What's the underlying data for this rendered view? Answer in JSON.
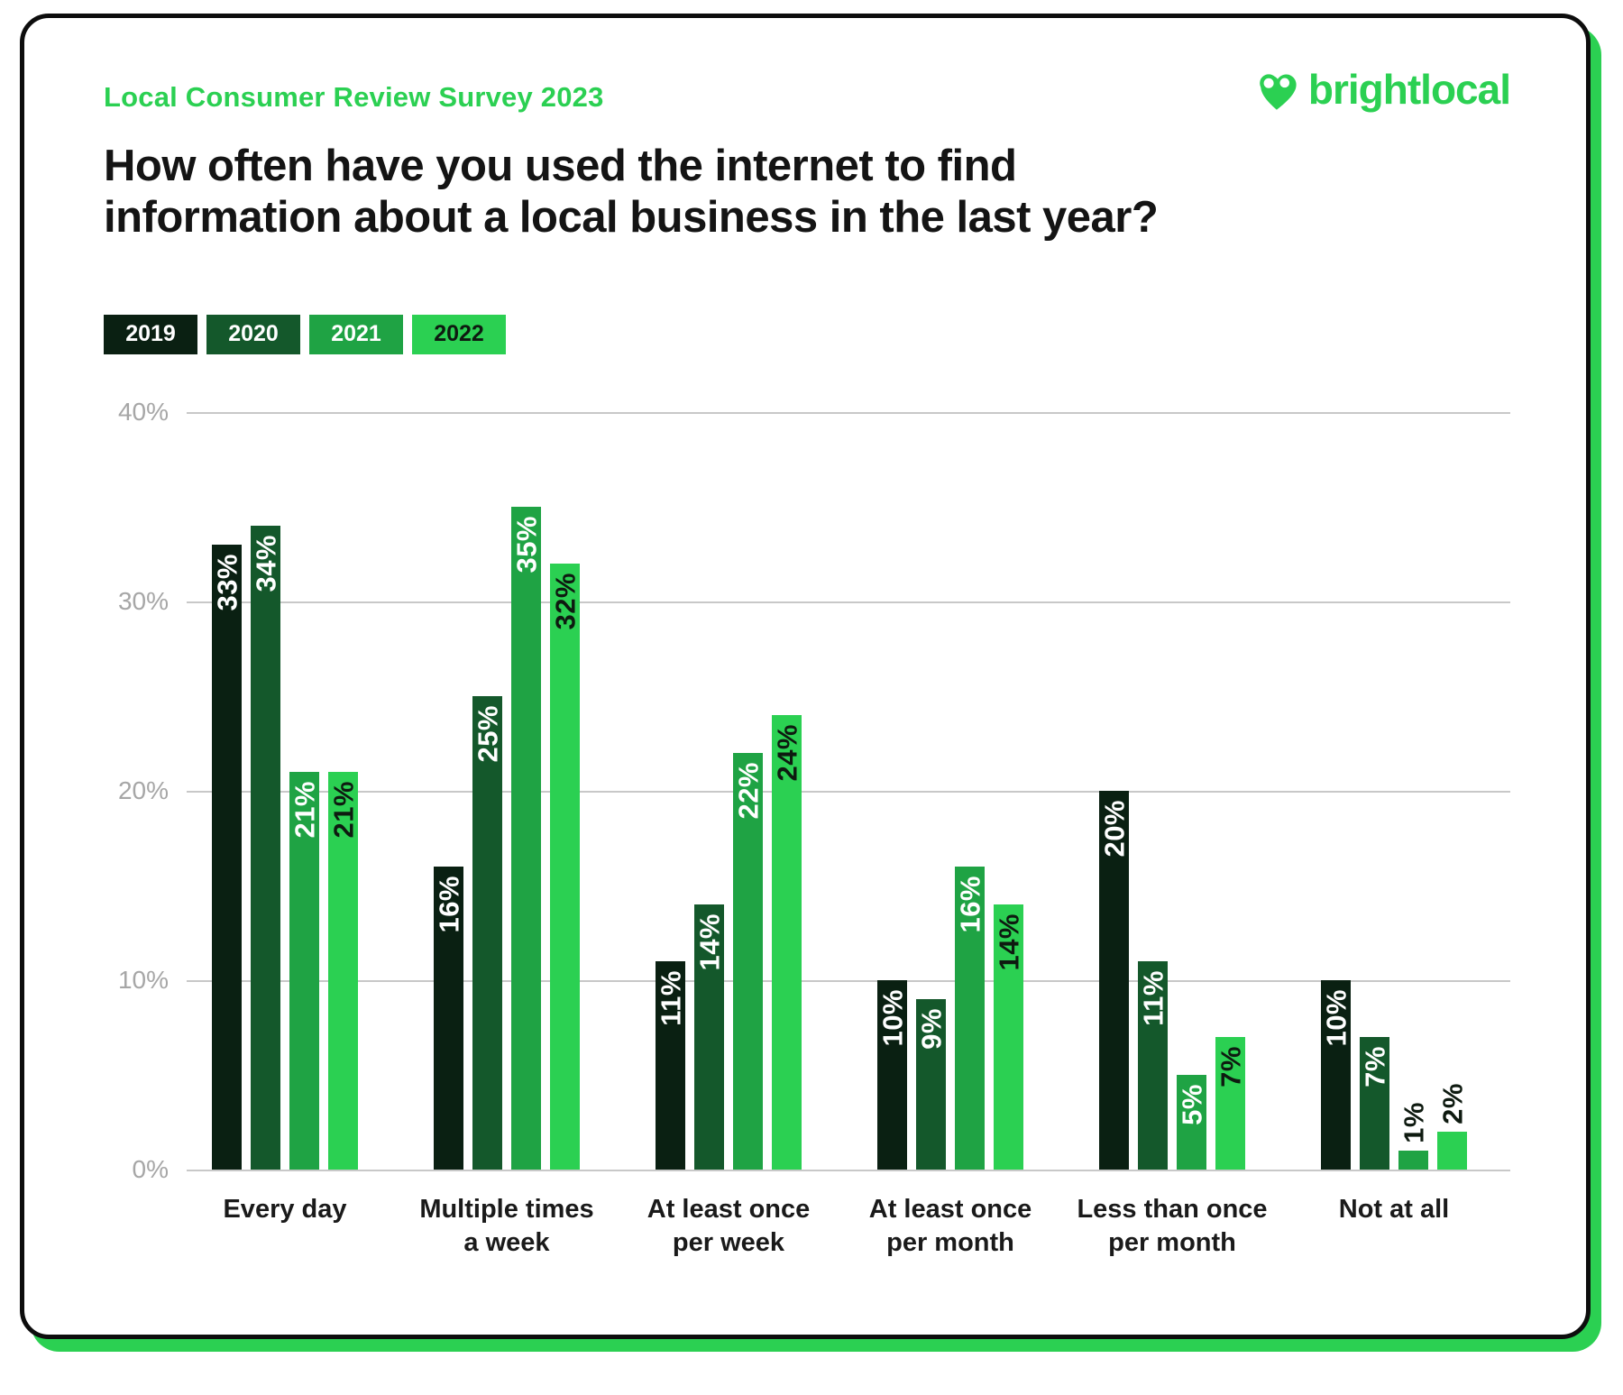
{
  "header": {
    "survey_label": "Local Consumer Review Survey 2023",
    "logo_text": "brightlocal",
    "question_lines": [
      "How often have you used the internet to find",
      "information about a local business in the last year?"
    ]
  },
  "colors": {
    "brand_green": "#2bd052",
    "card_border": "#0d0d0d",
    "gridline": "#c8c8c8",
    "axis_tick_text": "#a6a6a6",
    "heading_text": "#141414"
  },
  "legend": [
    {
      "label": "2019",
      "color": "#0a2012",
      "text_color": "#ffffff"
    },
    {
      "label": "2020",
      "color": "#14582b",
      "text_color": "#ffffff"
    },
    {
      "label": "2021",
      "color": "#1fa344",
      "text_color": "#ffffff"
    },
    {
      "label": "2022",
      "color": "#2bd052",
      "text_color": "#0e1a10"
    }
  ],
  "chart_data": {
    "type": "bar",
    "title": "How often have you used the internet to find information about a local business in the last year?",
    "xlabel": "",
    "ylabel": "",
    "ylim": [
      0,
      40
    ],
    "grid": true,
    "legend_position": "top-left",
    "yticks": [
      {
        "value": 40,
        "label": "40%"
      },
      {
        "value": 30,
        "label": "30%"
      },
      {
        "value": 20,
        "label": "20%"
      },
      {
        "value": 10,
        "label": "10%"
      },
      {
        "value": 0,
        "label": "0%"
      }
    ],
    "categories": [
      "Every day",
      "Multiple times a week",
      "At least once per week",
      "At least once per month",
      "Less than once per month",
      "Not at all"
    ],
    "category_label_lines": [
      [
        "Every day"
      ],
      [
        "Multiple times",
        "a week"
      ],
      [
        "At least once",
        "per week"
      ],
      [
        "At least once",
        "per month"
      ],
      [
        "Less than once",
        "per month"
      ],
      [
        "Not at all"
      ]
    ],
    "series": [
      {
        "name": "2019",
        "color": "#0a2012",
        "label_color": "#ffffff",
        "values": [
          33,
          16,
          11,
          10,
          20,
          10
        ],
        "labels": [
          "33%",
          "16%",
          "11%",
          "10%",
          "20%",
          "10%"
        ]
      },
      {
        "name": "2020",
        "color": "#14582b",
        "label_color": "#ffffff",
        "values": [
          34,
          25,
          14,
          9,
          11,
          7
        ],
        "labels": [
          "34%",
          "25%",
          "14%",
          "9%",
          "11%",
          "7%"
        ]
      },
      {
        "name": "2021",
        "color": "#1fa344",
        "label_color": "#ffffff",
        "values": [
          21,
          35,
          22,
          16,
          5,
          1
        ],
        "labels": [
          "21%",
          "35%",
          "22%",
          "16%",
          "5%",
          "1%"
        ]
      },
      {
        "name": "2022",
        "color": "#2bd052",
        "label_color": "#0e1a10",
        "values": [
          21,
          32,
          24,
          14,
          7,
          2
        ],
        "labels": [
          "21%",
          "32%",
          "24%",
          "14%",
          "7%",
          "2%"
        ]
      }
    ],
    "small_bar_label_color": "#0e1a10"
  }
}
